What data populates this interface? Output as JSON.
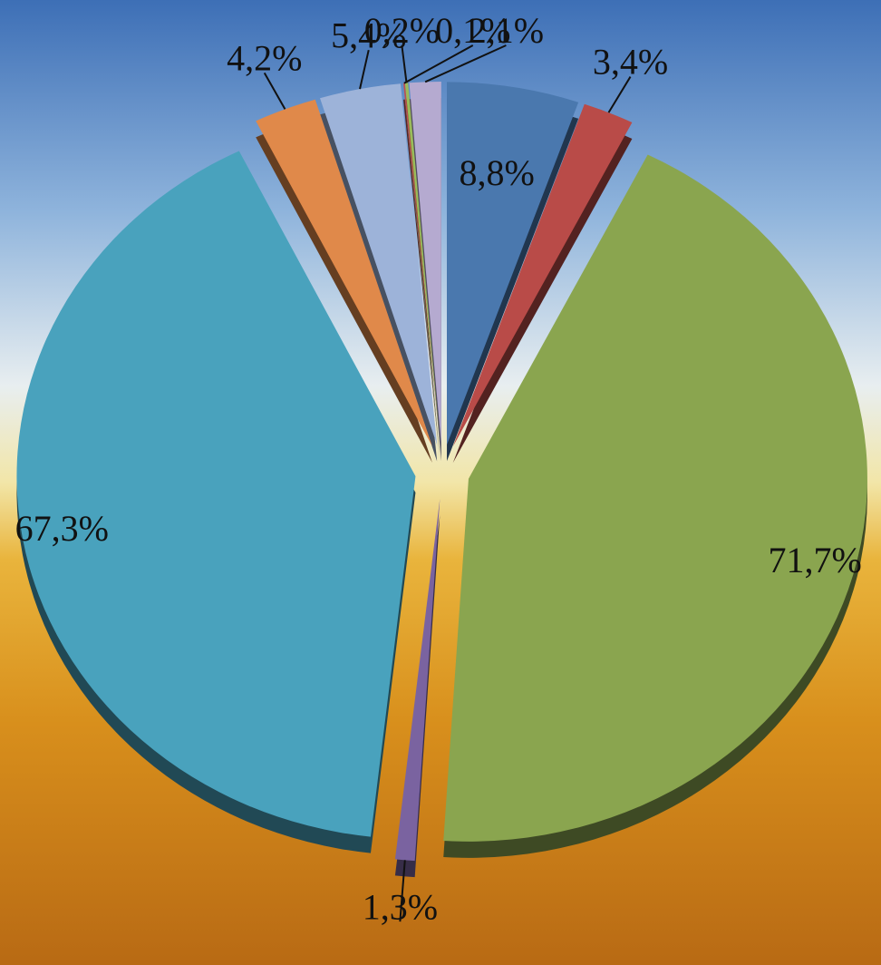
{
  "chart_data": {
    "type": "pie",
    "categories": [
      null,
      null,
      null,
      null,
      null,
      null,
      null,
      null,
      null,
      null
    ],
    "values": [
      8.8,
      3.4,
      71.7,
      1.3,
      67.3,
      4.2,
      5.4,
      0.1,
      0.2,
      2.1
    ],
    "value_labels": [
      "8,8%",
      "3,4%",
      "71,7%",
      "1,3%",
      "67,3%",
      "4,2%",
      "5,4%",
      "0,1%",
      "0,2%",
      "2,1%"
    ],
    "colors": [
      "#4a78ae",
      "#b94b48",
      "#8aa54f",
      "#7a63a0",
      "#49a2bd",
      "#e0894a",
      "#9db3d9",
      "#c0504d",
      "#9bbb59",
      "#b5aad0"
    ]
  }
}
